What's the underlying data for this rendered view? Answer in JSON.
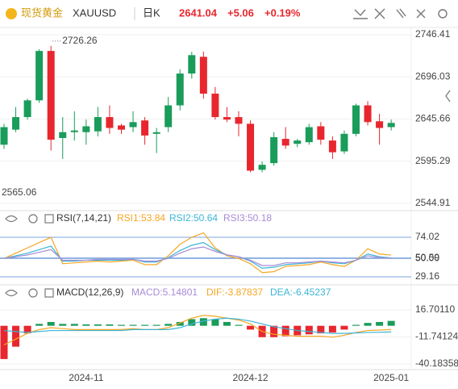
{
  "header": {
    "name": "现货黄金",
    "symbol": "XAUUSD",
    "period": "日K",
    "price": "2641.04",
    "change": "+5.06",
    "change_pct": "+0.19%"
  },
  "chart_data": [
    {
      "type": "candlestick",
      "up_color": "#1a9c5b",
      "down_color": "#e8262e",
      "open": [
        2615,
        2633,
        2648,
        2668,
        2727,
        2623,
        2630,
        2630,
        2631,
        2648,
        2638,
        2636,
        2644,
        2628,
        2636,
        2662,
        2700,
        2720,
        2676,
        2648,
        2648,
        2640,
        2585,
        2593,
        2622,
        2616,
        2618,
        2637,
        2620,
        2607,
        2628,
        2662,
        2643,
        2636
      ],
      "high": [
        2640,
        2660,
        2670,
        2729,
        2733,
        2648,
        2655,
        2645,
        2660,
        2662,
        2640,
        2655,
        2648,
        2635,
        2672,
        2705,
        2726,
        2726.26,
        2684,
        2660,
        2655,
        2644,
        2595,
        2630,
        2636,
        2622,
        2640,
        2642,
        2625,
        2632,
        2664,
        2667,
        2652,
        2645
      ],
      "low": [
        2610,
        2630,
        2645,
        2665,
        2608,
        2598,
        2620,
        2615,
        2625,
        2628,
        2628,
        2630,
        2615,
        2605,
        2630,
        2656,
        2694,
        2670,
        2645,
        2642,
        2625,
        2582,
        2582,
        2590,
        2610,
        2612,
        2615,
        2615,
        2598,
        2604,
        2625,
        2638,
        2615,
        2632
      ],
      "close": [
        2636,
        2648,
        2668,
        2727,
        2621,
        2630,
        2632,
        2637,
        2648,
        2635,
        2633,
        2642,
        2626,
        2630,
        2662,
        2700,
        2722,
        2676,
        2648,
        2645,
        2640,
        2584,
        2591,
        2624,
        2614,
        2620,
        2636,
        2621,
        2606,
        2628,
        2662,
        2642,
        2635,
        2641.04
      ],
      "ylim": [
        2544.91,
        2746.41
      ],
      "yticks": [
        2746.41,
        2696.03,
        2645.66,
        2595.29,
        2544.91
      ],
      "annotations": [
        "2726.26",
        "2565.06"
      ]
    },
    {
      "type": "line",
      "title": "RSI(7,14,21)",
      "series": [
        {
          "name": "RSI1:53.84",
          "color": "#f5a623",
          "values": [
            50,
            56,
            62,
            68,
            74,
            44,
            45,
            46,
            47,
            46,
            47,
            48,
            43,
            43,
            53,
            66,
            74,
            79,
            62,
            53,
            50,
            44,
            34,
            35,
            41,
            42,
            43,
            46,
            43,
            41,
            48,
            61,
            55,
            53.84
          ]
        },
        {
          "name": "RSI2:50.64",
          "color": "#3bb5d6",
          "values": [
            50,
            53,
            56,
            60,
            64,
            47,
            47,
            48,
            48,
            48,
            48,
            49,
            46,
            46,
            51,
            59,
            65,
            68,
            60,
            54,
            52,
            47,
            39,
            40,
            43,
            44,
            45,
            47,
            45,
            44,
            48,
            55,
            52,
            50.64
          ]
        },
        {
          "name": "RSI3:50.18",
          "color": "#a78bd6",
          "values": [
            50,
            52,
            54,
            57,
            60,
            48,
            48,
            48,
            49,
            49,
            49,
            49,
            47,
            47,
            50,
            56,
            61,
            63,
            58,
            54,
            52,
            48,
            42,
            42,
            45,
            45,
            46,
            47,
            46,
            45,
            48,
            53,
            51,
            50.18
          ]
        }
      ],
      "ylim": [
        29.16,
        74.02
      ],
      "yticks": [
        74.02,
        50.59,
        {
          "value": 50,
          "label": "50.00"
        },
        29.16
      ],
      "grid_color": "#5b8fd6"
    },
    {
      "type": "macd",
      "title": "MACD(12,26,9)",
      "categories": [
        null,
        null,
        null,
        null,
        null,
        null,
        null,
        "2024-11",
        null,
        null,
        null,
        null,
        null,
        null,
        null,
        null,
        null,
        null,
        null,
        null,
        null,
        "2024-12",
        null,
        null,
        null,
        null,
        null,
        null,
        null,
        null,
        null,
        null,
        null,
        "2025-01"
      ],
      "up_color": "#1a9c5b",
      "down_color": "#e8262e",
      "series": [
        {
          "name": "MACD:5.14801",
          "color": "#a78bd6",
          "values": [
            -35,
            -22,
            -8,
            2,
            4,
            2,
            2,
            1.5,
            1.5,
            1.5,
            1,
            1,
            1,
            1,
            2,
            4,
            7,
            8,
            7,
            4,
            1,
            -4,
            -12,
            -12,
            -11,
            -10,
            -9,
            -8,
            -7,
            -4,
            1,
            3,
            4,
            5.14801
          ]
        },
        {
          "name": "DIF:-3.87837",
          "color": "#f5a623",
          "values": [
            -20,
            -14,
            -8,
            -4,
            -2,
            -3,
            -4,
            -4,
            -4,
            -4,
            -4,
            -3,
            -4,
            -4,
            -2,
            3,
            8,
            11,
            10,
            8,
            6,
            2,
            -6,
            -9,
            -10,
            -11,
            -11,
            -11,
            -12,
            -10,
            -7,
            -5,
            -4.5,
            -3.87837
          ]
        },
        {
          "name": "DEA:-6.45237",
          "color": "#3bb5d6",
          "values": [
            -5,
            -6,
            -7,
            -6,
            -5,
            -5,
            -5,
            -5,
            -5,
            -5,
            -5,
            -4,
            -4,
            -4,
            -4,
            -2,
            2,
            5,
            7,
            8,
            7,
            5,
            2,
            -1,
            -3,
            -5,
            -6,
            -7,
            -8,
            -8,
            -7.5,
            -7,
            -6.8,
            -6.45237
          ]
        }
      ],
      "ylim": [
        -40.18358,
        16.7011
      ],
      "yticks": [
        {
          "value": 16.7011,
          "label": "16.70110"
        },
        -11.74124,
        -40.18358
      ]
    }
  ]
}
